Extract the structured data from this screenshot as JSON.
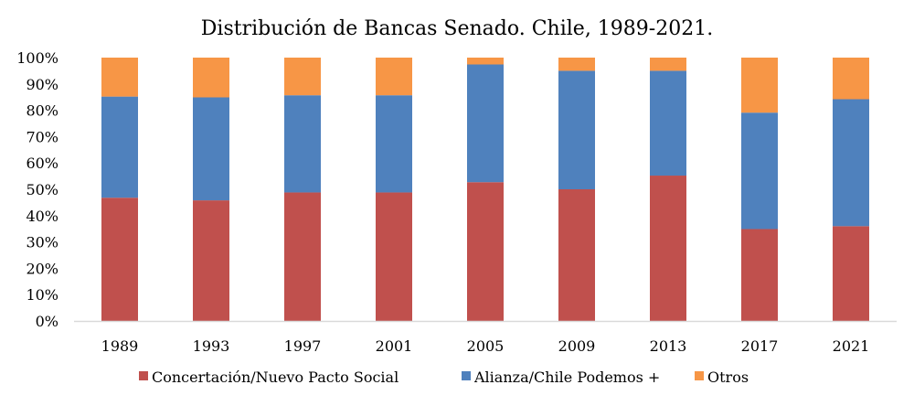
{
  "chart_data": {
    "type": "bar",
    "stacked": true,
    "normalized": true,
    "title": "Distribución de Bancas Senado. Chile, 1989-2021.",
    "xlabel": "",
    "ylabel": "",
    "ylim": [
      0,
      100
    ],
    "yticks": [
      "0%",
      "10%",
      "20%",
      "30%",
      "40%",
      "50%",
      "60%",
      "70%",
      "80%",
      "90%",
      "100%"
    ],
    "grid": false,
    "legend_position": "bottom",
    "categories": [
      "1989",
      "1993",
      "1997",
      "2001",
      "2005",
      "2009",
      "2013",
      "2017",
      "2021"
    ],
    "series": [
      {
        "name": "Concertación/Nuevo Pacto Social",
        "color": "#c0504d",
        "values": [
          46.8,
          45.8,
          48.8,
          48.8,
          52.7,
          50.0,
          55.2,
          34.9,
          36.0
        ]
      },
      {
        "name": "Alianza/Chile Podemos +",
        "color": "#4f81bd",
        "values": [
          38.4,
          39.1,
          36.9,
          36.9,
          44.7,
          45.0,
          39.8,
          44.2,
          48.2
        ]
      },
      {
        "name": "Otros",
        "color": "#f79646",
        "values": [
          14.8,
          15.1,
          14.3,
          14.3,
          2.6,
          5.0,
          5.0,
          20.9,
          15.8
        ]
      }
    ]
  }
}
